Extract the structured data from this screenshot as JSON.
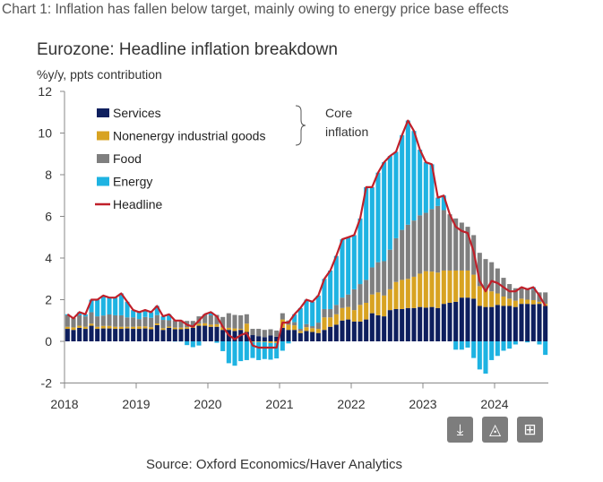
{
  "header": {
    "title": "Chart 1: Inflation has fallen below target, mainly owing to energy price base effects"
  },
  "footer": {
    "source": "Source: Oxford Economics/Haver Analytics"
  },
  "toolbar": {
    "buttons": [
      {
        "icon": "download-icon"
      },
      {
        "icon": "chart-add-icon"
      },
      {
        "icon": "add-to-board-icon"
      }
    ]
  },
  "chart_data": {
    "type": "bar",
    "stacked": true,
    "title": "Eurozone: Headline inflation breakdown",
    "ylabel": "%y/y, ppts contribution",
    "ylim": [
      -2,
      12
    ],
    "yticks": [
      "-2",
      "0",
      "2",
      "4",
      "6",
      "8",
      "10",
      "12"
    ],
    "xticks": [
      "2018",
      "2019",
      "2020",
      "2021",
      "2022",
      "2023",
      "2024"
    ],
    "x_start": "2018-01",
    "x_end": "2024-09",
    "frequency": "monthly",
    "annotation": {
      "line1": "Core",
      "line2": "inflation"
    },
    "colors": {
      "Services": "#0e1f5e",
      "Nonenergy industrial goods": "#d8a322",
      "Food": "#7f7f7f",
      "Energy": "#1eb3e2",
      "Headline": "#c0202a"
    },
    "series": [
      {
        "name": "Services",
        "values": [
          0.6,
          0.55,
          0.65,
          0.6,
          0.75,
          0.6,
          0.62,
          0.62,
          0.6,
          0.6,
          0.62,
          0.6,
          0.6,
          0.62,
          0.58,
          0.78,
          0.55,
          0.65,
          0.58,
          0.58,
          0.6,
          0.65,
          0.75,
          0.75,
          0.7,
          0.7,
          0.55,
          0.55,
          0.5,
          0.55,
          0.45,
          0.3,
          0.25,
          0.2,
          0.28,
          0.22,
          0.65,
          0.55,
          0.55,
          0.4,
          0.5,
          0.45,
          0.4,
          0.55,
          0.7,
          0.8,
          1.0,
          1.05,
          0.95,
          0.95,
          1.05,
          1.35,
          1.25,
          1.2,
          1.5,
          1.55,
          1.55,
          1.6,
          1.6,
          1.65,
          1.62,
          1.65,
          1.6,
          1.8,
          1.85,
          1.9,
          2.1,
          2.1,
          2.05,
          1.7,
          1.65,
          1.65,
          1.75,
          1.7,
          1.7,
          1.65,
          1.8,
          1.8,
          1.78,
          1.8,
          1.7
        ]
      },
      {
        "name": "Nonenergy industrial goods",
        "values": [
          0.1,
          0.12,
          0.1,
          0.1,
          0.1,
          0.1,
          0.12,
          0.12,
          0.1,
          0.1,
          0.08,
          0.1,
          0.12,
          0.1,
          0.1,
          0.08,
          0.08,
          0.06,
          0.08,
          0.08,
          0.08,
          0.08,
          0.1,
          0.12,
          0.1,
          0.12,
          0.12,
          0.1,
          0.12,
          0.05,
          0.4,
          -0.03,
          -0.03,
          -0.03,
          -0.08,
          -0.08,
          0.4,
          0.25,
          0.22,
          0.1,
          0.18,
          0.18,
          0.2,
          0.6,
          0.45,
          0.5,
          0.6,
          0.6,
          0.55,
          0.8,
          0.8,
          0.9,
          1.1,
          1.0,
          1.0,
          1.3,
          1.4,
          1.4,
          1.5,
          1.6,
          1.75,
          1.7,
          1.7,
          1.6,
          1.55,
          1.5,
          1.3,
          1.3,
          1.15,
          0.95,
          0.8,
          0.75,
          0.55,
          0.45,
          0.35,
          0.3,
          0.25,
          0.2,
          0.2,
          0.1,
          0.1
        ]
      },
      {
        "name": "Food",
        "values": [
          0.55,
          0.45,
          0.5,
          0.5,
          0.55,
          0.5,
          0.5,
          0.55,
          0.55,
          0.55,
          0.45,
          0.45,
          0.35,
          0.45,
          0.45,
          0.4,
          0.4,
          0.3,
          0.35,
          0.35,
          0.3,
          0.25,
          0.35,
          0.4,
          0.45,
          0.45,
          0.5,
          0.7,
          0.65,
          0.65,
          0.45,
          0.3,
          0.35,
          0.35,
          0.3,
          0.3,
          0.3,
          0.2,
          0.15,
          0.1,
          0.15,
          0.1,
          0.3,
          0.4,
          0.4,
          0.45,
          0.5,
          0.6,
          1.0,
          1.0,
          1.1,
          1.3,
          1.45,
          1.65,
          1.9,
          2.1,
          2.4,
          2.6,
          2.7,
          2.8,
          2.8,
          3.0,
          3.2,
          2.9,
          2.7,
          2.5,
          2.3,
          2.1,
          1.9,
          1.6,
          1.5,
          1.4,
          1.2,
          0.9,
          0.7,
          0.6,
          0.55,
          0.55,
          0.5,
          0.45,
          0.55
        ]
      },
      {
        "name": "Energy",
        "values": [
          0.05,
          0.0,
          0.15,
          0.1,
          0.6,
          0.8,
          0.96,
          0.81,
          0.85,
          1.05,
          0.75,
          0.35,
          0.33,
          0.33,
          0.27,
          0.44,
          0.17,
          0.29,
          -0.01,
          -0.01,
          -0.18,
          -0.28,
          -0.2,
          0.03,
          0.15,
          -0.07,
          -0.47,
          -1.05,
          -1.17,
          -0.95,
          -0.9,
          -0.77,
          -0.87,
          -0.82,
          -0.8,
          -0.74,
          -0.45,
          -0.1,
          0.38,
          1.0,
          1.17,
          1.17,
          1.3,
          1.45,
          1.85,
          2.35,
          2.8,
          2.75,
          2.6,
          3.15,
          4.45,
          3.85,
          4.3,
          4.75,
          4.5,
          4.15,
          4.55,
          5.0,
          4.3,
          3.15,
          2.43,
          2.15,
          0.4,
          0.7,
          0.0,
          -0.4,
          -0.4,
          -0.3,
          -0.8,
          -1.35,
          -1.55,
          -0.9,
          -0.7,
          -0.45,
          -0.35,
          -0.15,
          0.0,
          -0.05,
          0.12,
          -0.15,
          -0.65
        ]
      },
      {
        "name": "Headline",
        "type": "line",
        "values": [
          1.3,
          1.1,
          1.4,
          1.3,
          2.0,
          2.0,
          2.2,
          2.1,
          2.1,
          2.3,
          1.9,
          1.5,
          1.4,
          1.5,
          1.4,
          1.7,
          1.2,
          1.3,
          1.0,
          1.0,
          0.8,
          0.7,
          1.0,
          1.3,
          1.4,
          1.2,
          0.7,
          0.3,
          0.1,
          0.3,
          0.4,
          -0.2,
          -0.3,
          -0.3,
          -0.3,
          -0.3,
          0.9,
          0.9,
          1.3,
          1.6,
          2.0,
          1.9,
          2.2,
          3.0,
          3.4,
          4.1,
          4.9,
          5.0,
          5.1,
          5.9,
          7.4,
          7.4,
          8.1,
          8.6,
          8.9,
          9.1,
          9.9,
          10.6,
          10.1,
          9.2,
          8.6,
          8.5,
          6.9,
          7.0,
          6.1,
          5.5,
          5.3,
          5.2,
          4.3,
          2.9,
          2.4,
          2.9,
          2.8,
          2.6,
          2.4,
          2.4,
          2.6,
          2.5,
          2.6,
          2.2,
          1.7
        ]
      }
    ],
    "legend": {
      "placement": "top-left",
      "entries": [
        "Services",
        "Nonenergy industrial goods",
        "Food",
        "Energy",
        "Headline"
      ]
    },
    "grid": false
  }
}
